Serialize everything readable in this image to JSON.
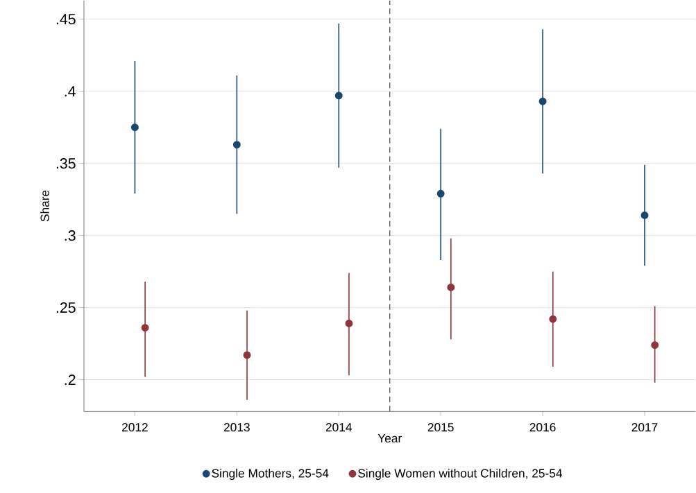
{
  "chart_data": {
    "type": "scatter",
    "xlabel": "Year",
    "ylabel": "Share",
    "xlim": [
      2011.5,
      2017.5
    ],
    "ylim": [
      0.178,
      0.463
    ],
    "xticks": [
      2012,
      2013,
      2014,
      2015,
      2016,
      2017
    ],
    "yticks": [
      {
        "value": 0.2,
        "label": ".2"
      },
      {
        "value": 0.25,
        "label": ".25"
      },
      {
        "value": 0.3,
        "label": ".3"
      },
      {
        "value": 0.35,
        "label": ".35"
      },
      {
        "value": 0.4,
        "label": ".4"
      },
      {
        "value": 0.45,
        "label": ".45"
      }
    ],
    "grid": "y",
    "legend": "bottom",
    "marker": "circle",
    "ref_lines": [
      {
        "axis": "x",
        "value": 2014.5,
        "color": "#555555",
        "line_style": "dashed"
      }
    ],
    "series": [
      {
        "name": "Single Mothers, 25-54",
        "color": "#1a476f",
        "x": [
          2012,
          2013,
          2014,
          2015,
          2016,
          2017
        ],
        "values": [
          0.375,
          0.363,
          0.397,
          0.329,
          0.393,
          0.314
        ],
        "errors": [
          [
            0.329,
            0.421
          ],
          [
            0.315,
            0.411
          ],
          [
            0.347,
            0.447
          ],
          [
            0.283,
            0.374
          ],
          [
            0.343,
            0.443
          ],
          [
            0.279,
            0.349
          ]
        ]
      },
      {
        "name": "Single Women without Children, 25-54",
        "color": "#90353b",
        "x": [
          2012.1,
          2013.1,
          2014.1,
          2015.1,
          2016.1,
          2017.1
        ],
        "values": [
          0.236,
          0.217,
          0.239,
          0.264,
          0.242,
          0.224
        ],
        "errors": [
          [
            0.202,
            0.268
          ],
          [
            0.186,
            0.248
          ],
          [
            0.203,
            0.274
          ],
          [
            0.228,
            0.298
          ],
          [
            0.209,
            0.275
          ],
          [
            0.198,
            0.251
          ]
        ]
      }
    ]
  }
}
